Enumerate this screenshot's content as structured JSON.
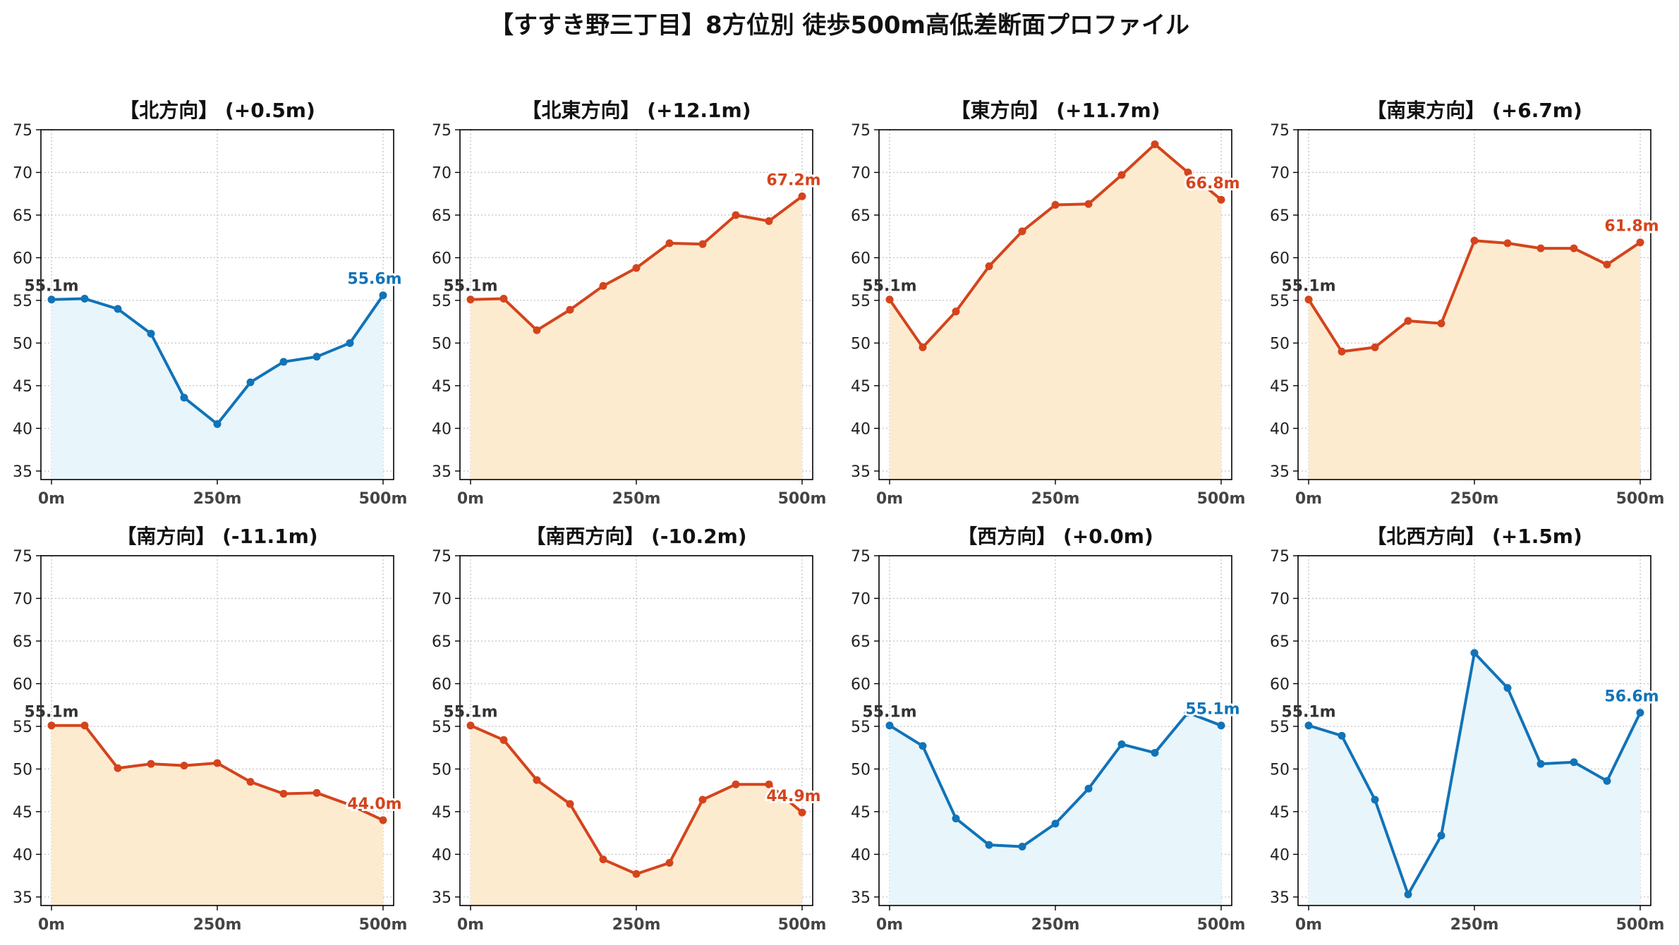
{
  "title": "【すすき野三丁目】8方位別 徒歩500m高低差断面プロファイル",
  "colors": {
    "up_line": "#d4441c",
    "up_fill": "#fdebd0",
    "down_line": "#1173b8",
    "down_fill": "#e8f5fb",
    "start_label": "#333333"
  },
  "chart_data": [
    {
      "type": "area",
      "title": "【北方向】 (+0.5m)",
      "trend": "down",
      "x": [
        0,
        50,
        100,
        150,
        200,
        250,
        300,
        350,
        400,
        450,
        500
      ],
      "values": [
        55.1,
        55.2,
        54.0,
        51.1,
        43.6,
        40.5,
        45.4,
        47.8,
        48.4,
        50.0,
        55.6
      ],
      "start_label": "55.1m",
      "end_label": "55.6m",
      "ylim": [
        34,
        75
      ],
      "yticks": [
        35,
        40,
        45,
        50,
        55,
        60,
        65,
        70,
        75
      ],
      "xticks": [
        "0m",
        "250m",
        "500m"
      ],
      "grid": true
    },
    {
      "type": "area",
      "title": "【北東方向】 (+12.1m)",
      "trend": "up",
      "x": [
        0,
        50,
        100,
        150,
        200,
        250,
        300,
        350,
        400,
        450,
        500
      ],
      "values": [
        55.1,
        55.2,
        51.5,
        53.9,
        56.7,
        58.8,
        61.7,
        61.6,
        65.0,
        64.3,
        67.2
      ],
      "start_label": "55.1m",
      "end_label": "67.2m",
      "ylim": [
        34,
        75
      ],
      "yticks": [
        35,
        40,
        45,
        50,
        55,
        60,
        65,
        70,
        75
      ],
      "xticks": [
        "0m",
        "250m",
        "500m"
      ],
      "grid": true
    },
    {
      "type": "area",
      "title": "【東方向】 (+11.7m)",
      "trend": "up",
      "x": [
        0,
        50,
        100,
        150,
        200,
        250,
        300,
        350,
        400,
        450,
        500
      ],
      "values": [
        55.1,
        49.5,
        53.7,
        59.0,
        63.1,
        66.2,
        66.3,
        69.7,
        73.3,
        70.0,
        66.8
      ],
      "start_label": "55.1m",
      "end_label": "66.8m",
      "ylim": [
        34,
        75
      ],
      "yticks": [
        35,
        40,
        45,
        50,
        55,
        60,
        65,
        70,
        75
      ],
      "xticks": [
        "0m",
        "250m",
        "500m"
      ],
      "grid": true
    },
    {
      "type": "area",
      "title": "【南東方向】 (+6.7m)",
      "trend": "up",
      "x": [
        0,
        50,
        100,
        150,
        200,
        250,
        300,
        350,
        400,
        450,
        500
      ],
      "values": [
        55.1,
        49.0,
        49.5,
        52.6,
        52.3,
        62.0,
        61.7,
        61.1,
        61.1,
        59.2,
        61.8
      ],
      "start_label": "55.1m",
      "end_label": "61.8m",
      "ylim": [
        34,
        75
      ],
      "yticks": [
        35,
        40,
        45,
        50,
        55,
        60,
        65,
        70,
        75
      ],
      "xticks": [
        "0m",
        "250m",
        "500m"
      ],
      "grid": true
    },
    {
      "type": "area",
      "title": "【南方向】 (-11.1m)",
      "trend": "up",
      "x": [
        0,
        50,
        100,
        150,
        200,
        250,
        300,
        350,
        400,
        450,
        500
      ],
      "values": [
        55.1,
        55.1,
        50.1,
        50.6,
        50.4,
        50.7,
        48.5,
        47.1,
        47.2,
        45.8,
        44.0
      ],
      "start_label": "55.1m",
      "end_label": "44.0m",
      "ylim": [
        34,
        75
      ],
      "yticks": [
        35,
        40,
        45,
        50,
        55,
        60,
        65,
        70,
        75
      ],
      "xticks": [
        "0m",
        "250m",
        "500m"
      ],
      "grid": true
    },
    {
      "type": "area",
      "title": "【南西方向】 (-10.2m)",
      "trend": "up",
      "x": [
        0,
        50,
        100,
        150,
        200,
        250,
        300,
        350,
        400,
        450,
        500
      ],
      "values": [
        55.1,
        53.4,
        48.7,
        45.9,
        39.4,
        37.7,
        39.0,
        46.4,
        48.2,
        48.2,
        44.9
      ],
      "start_label": "55.1m",
      "end_label": "44.9m",
      "ylim": [
        34,
        75
      ],
      "yticks": [
        35,
        40,
        45,
        50,
        55,
        60,
        65,
        70,
        75
      ],
      "xticks": [
        "0m",
        "250m",
        "500m"
      ],
      "grid": true
    },
    {
      "type": "area",
      "title": "【西方向】 (+0.0m)",
      "trend": "down",
      "x": [
        0,
        50,
        100,
        150,
        200,
        250,
        300,
        350,
        400,
        450,
        500
      ],
      "values": [
        55.1,
        52.7,
        44.2,
        41.1,
        40.9,
        43.6,
        47.7,
        52.9,
        51.9,
        56.6,
        55.1
      ],
      "start_label": "55.1m",
      "end_label": "55.1m",
      "ylim": [
        34,
        75
      ],
      "yticks": [
        35,
        40,
        45,
        50,
        55,
        60,
        65,
        70,
        75
      ],
      "xticks": [
        "0m",
        "250m",
        "500m"
      ],
      "grid": true
    },
    {
      "type": "area",
      "title": "【北西方向】 (+1.5m)",
      "trend": "down",
      "x": [
        0,
        50,
        100,
        150,
        200,
        250,
        300,
        350,
        400,
        450,
        500
      ],
      "values": [
        55.1,
        53.9,
        46.4,
        35.3,
        42.2,
        63.6,
        59.5,
        50.6,
        50.8,
        48.6,
        56.6
      ],
      "start_label": "55.1m",
      "end_label": "56.6m",
      "ylim": [
        34,
        75
      ],
      "yticks": [
        35,
        40,
        45,
        50,
        55,
        60,
        65,
        70,
        75
      ],
      "xticks": [
        "0m",
        "250m",
        "500m"
      ],
      "grid": true
    }
  ]
}
